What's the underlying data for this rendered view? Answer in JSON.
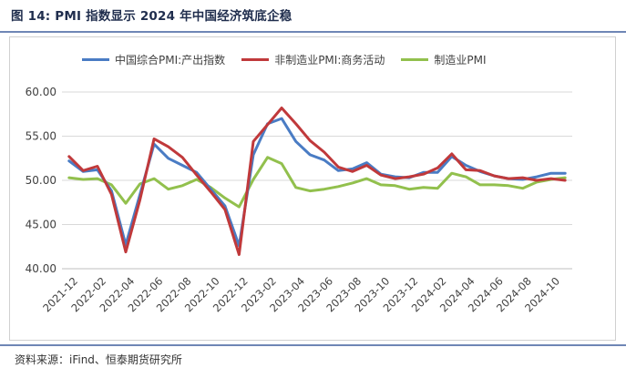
{
  "page": {
    "title": "图 14: PMI 指数显示 2024 年中国经济筑底企稳",
    "source": "资料来源：iFind、恒泰期货研究所"
  },
  "chart_data": {
    "type": "line",
    "y_ticks": [
      "40.00",
      "45.00",
      "50.00",
      "55.00",
      "60.00"
    ],
    "ylim": [
      40,
      60
    ],
    "x": [
      "2021-12",
      "2022-01",
      "2022-02",
      "2022-03",
      "2022-04",
      "2022-05",
      "2022-06",
      "2022-07",
      "2022-08",
      "2022-09",
      "2022-10",
      "2022-11",
      "2022-12",
      "2023-01",
      "2023-02",
      "2023-03",
      "2023-04",
      "2023-05",
      "2023-06",
      "2023-07",
      "2023-08",
      "2023-09",
      "2023-10",
      "2023-11",
      "2023-12",
      "2024-01",
      "2024-02",
      "2024-03",
      "2024-04",
      "2024-05",
      "2024-06",
      "2024-07",
      "2024-08",
      "2024-09",
      "2024-10",
      "2024-11"
    ],
    "x_tick_labels": [
      "2021-12",
      "2022-02",
      "2022-04",
      "2022-06",
      "2022-08",
      "2022-10",
      "2022-12",
      "2023-02",
      "2023-04",
      "2023-06",
      "2023-08",
      "2023-10",
      "2023-12",
      "2024-02",
      "2024-04",
      "2024-06",
      "2024-08",
      "2024-10"
    ],
    "series": [
      {
        "name": "中国综合PMI:产出指数",
        "color": "#4a7cc4",
        "values": [
          52.2,
          51.0,
          51.2,
          48.8,
          42.7,
          48.4,
          54.1,
          52.5,
          51.7,
          50.9,
          49.0,
          47.1,
          42.6,
          52.9,
          56.4,
          57.0,
          54.4,
          52.9,
          52.3,
          51.1,
          51.3,
          52.0,
          50.7,
          50.4,
          50.3,
          50.9,
          50.9,
          52.7,
          51.7,
          51.0,
          50.5,
          50.2,
          50.1,
          50.4,
          50.8,
          50.8
        ]
      },
      {
        "name": "非制造业PMI:商务活动",
        "color": "#c0393b",
        "values": [
          52.7,
          51.1,
          51.6,
          48.4,
          41.9,
          47.8,
          54.7,
          53.8,
          52.6,
          50.6,
          48.7,
          46.7,
          41.6,
          54.4,
          56.3,
          58.2,
          56.4,
          54.5,
          53.2,
          51.5,
          51.0,
          51.7,
          50.6,
          50.2,
          50.4,
          50.7,
          51.4,
          53.0,
          51.2,
          51.1,
          50.5,
          50.2,
          50.3,
          50.0,
          50.2,
          50.0
        ]
      },
      {
        "name": "制造业PMI",
        "color": "#92c04d",
        "values": [
          50.3,
          50.1,
          50.2,
          49.5,
          47.4,
          49.6,
          50.2,
          49.0,
          49.4,
          50.1,
          49.2,
          48.0,
          47.0,
          50.1,
          52.6,
          51.9,
          49.2,
          48.8,
          49.0,
          49.3,
          49.7,
          50.2,
          49.5,
          49.4,
          49.0,
          49.2,
          49.1,
          50.8,
          50.4,
          49.5,
          49.5,
          49.4,
          49.1,
          49.8,
          50.1,
          50.3
        ]
      }
    ],
    "grid": true,
    "legend_position": "top"
  }
}
